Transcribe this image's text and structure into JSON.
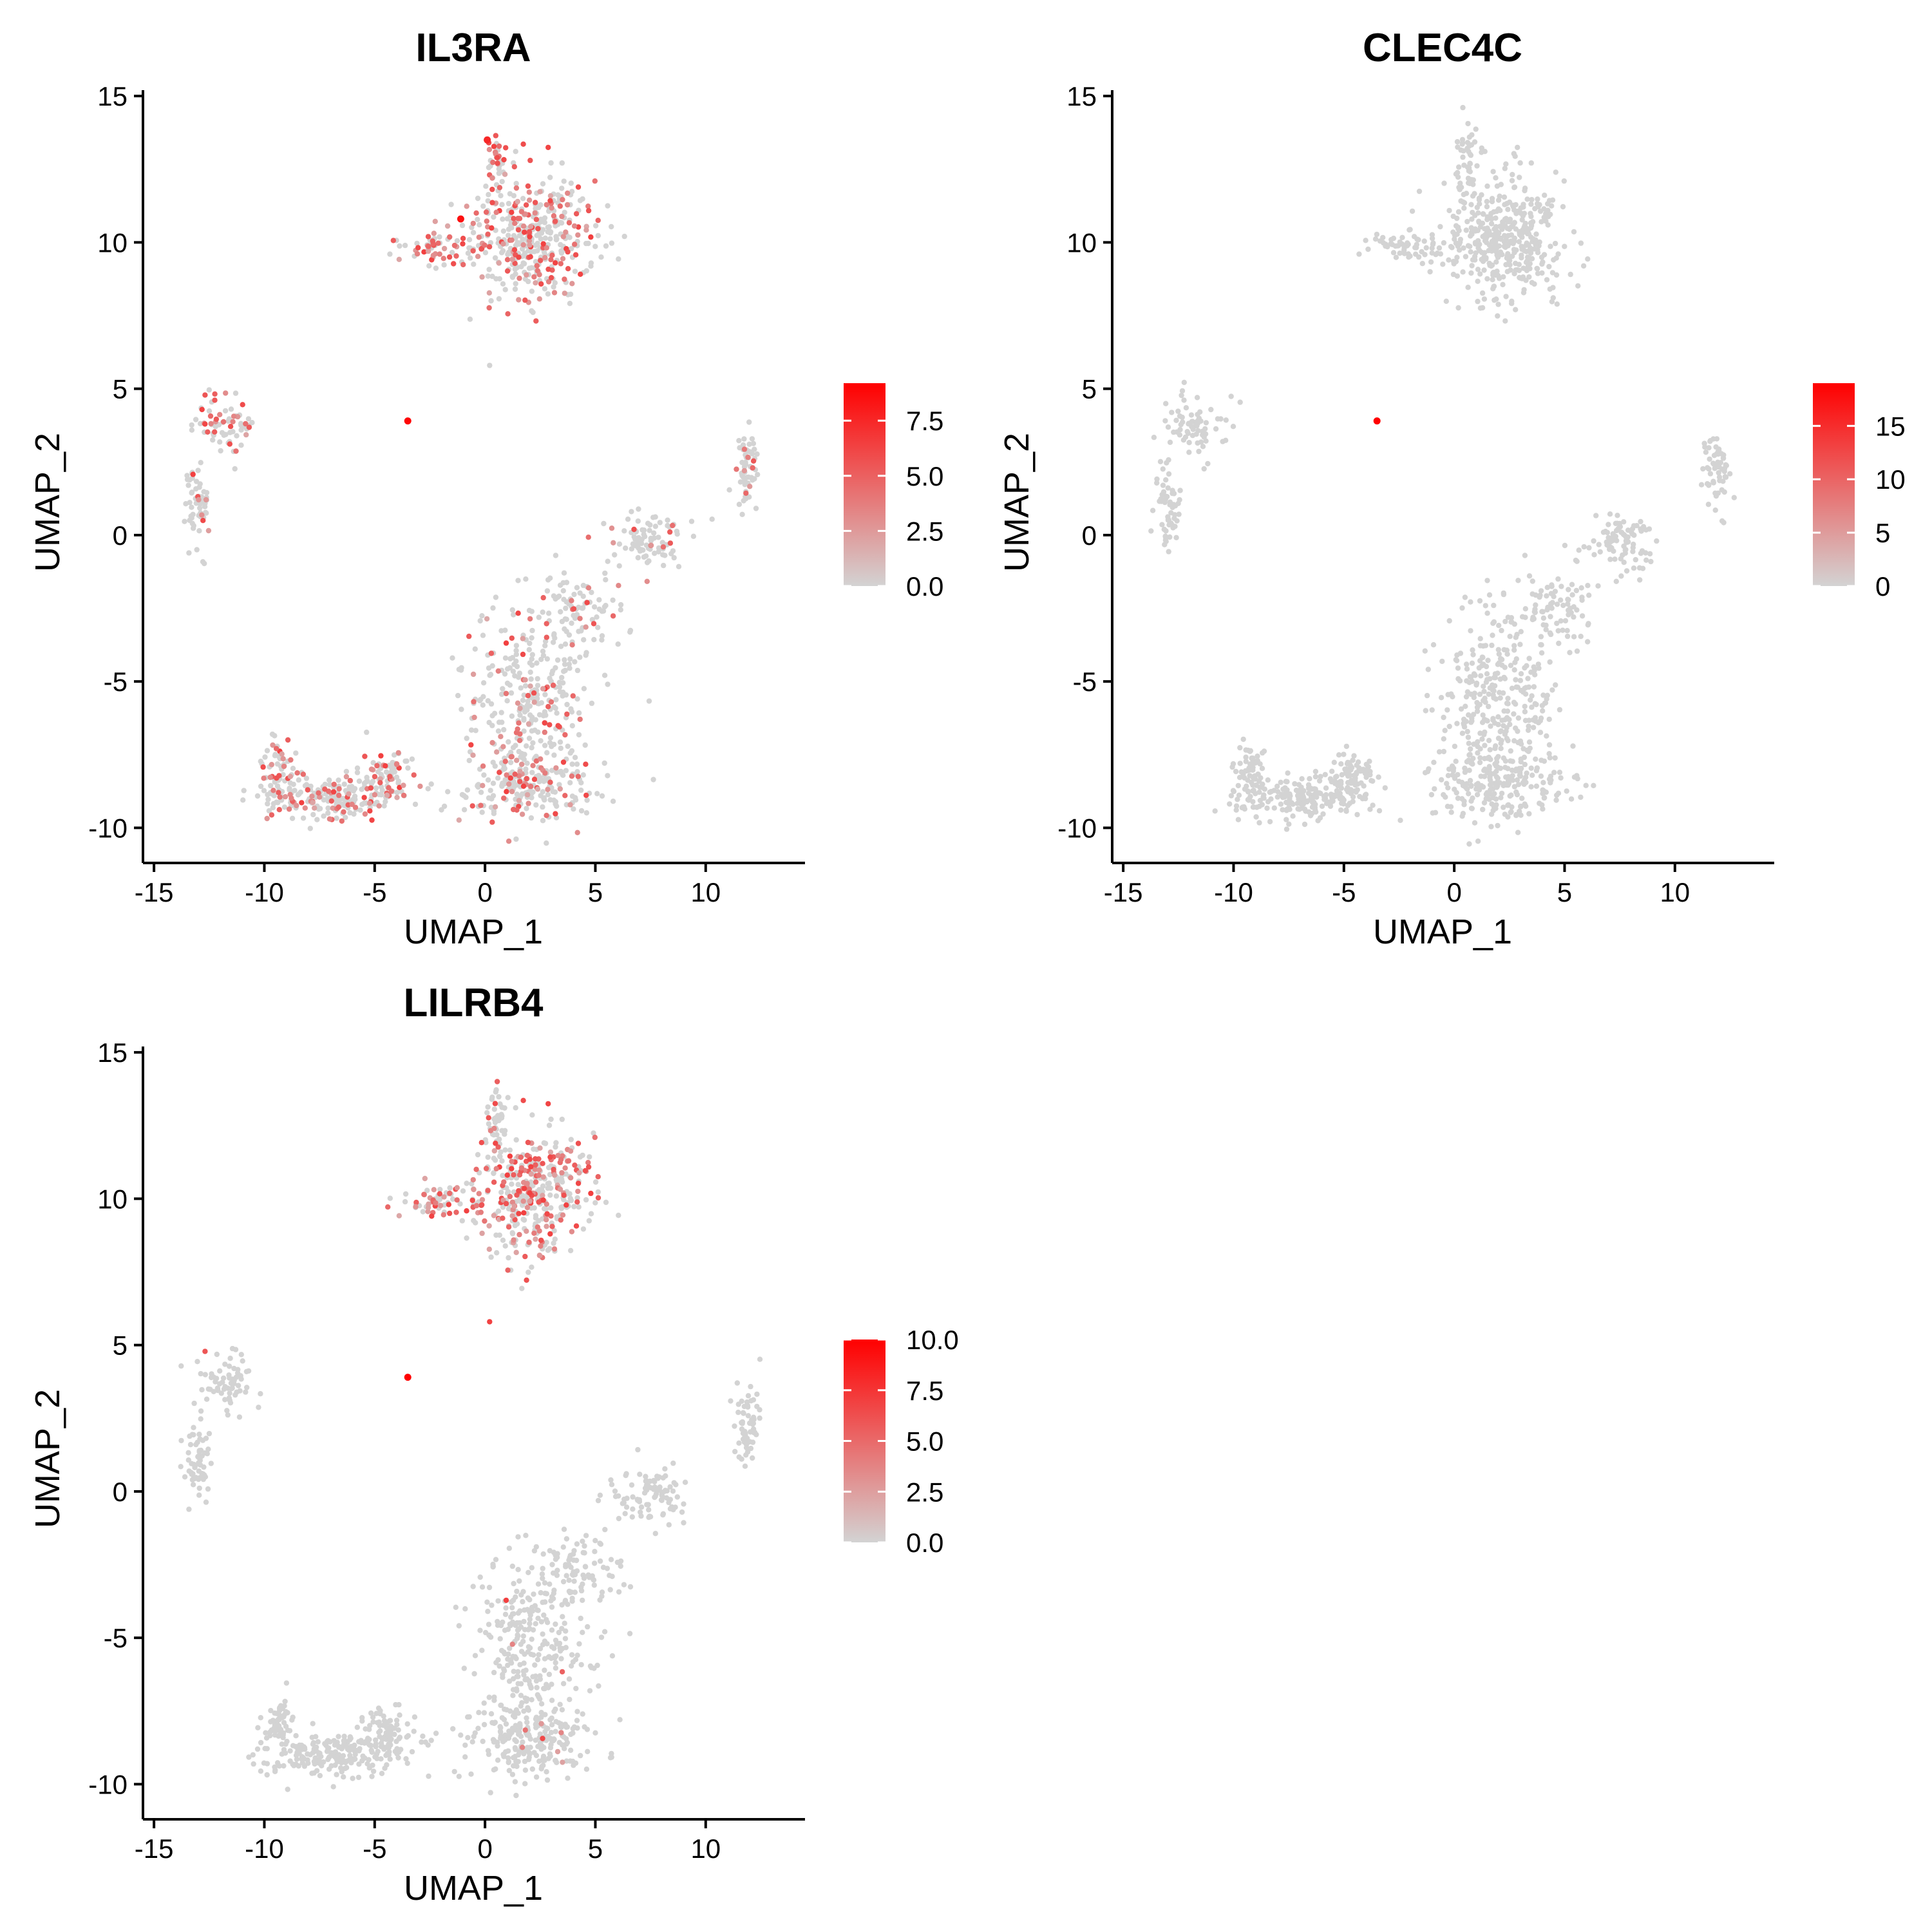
{
  "chart_data": [
    {
      "type": "scatter",
      "title": "IL3RA",
      "xlabel": "UMAP_1",
      "ylabel": "UMAP_2",
      "xlim": [
        -15.5,
        14.5
      ],
      "ylim": [
        -11.2,
        15.2
      ],
      "xticks": [
        -15,
        -10,
        -5,
        0,
        5,
        10
      ],
      "yticks": [
        -10,
        -5,
        0,
        5,
        10,
        15
      ],
      "color_low": "#d3d3d3",
      "color_high": "#ff0000",
      "grid": false,
      "legend": {
        "position": "right",
        "min": 0,
        "max": 9.2,
        "ticks": [
          {
            "value": 0,
            "label": "0.0"
          },
          {
            "value": 2.5,
            "label": "2.5"
          },
          {
            "value": 5,
            "label": "5.0"
          },
          {
            "value": 7.5,
            "label": "7.5"
          }
        ]
      },
      "clusters": [
        {
          "cx": 2.3,
          "cy": 10.2,
          "sx": 1.8,
          "sy": 1.4,
          "n": 420,
          "expr": 0.35
        },
        {
          "cx": 0.5,
          "cy": 12.8,
          "sx": 0.35,
          "sy": 0.8,
          "n": 40,
          "expr": 0.4
        },
        {
          "cx": -2.2,
          "cy": 9.9,
          "sx": 1.1,
          "sy": 0.35,
          "n": 60,
          "expr": 0.55
        },
        {
          "cx": -11.8,
          "cy": 3.7,
          "sx": 0.9,
          "sy": 0.7,
          "n": 70,
          "expr": 0.2
        },
        {
          "cx": -13.0,
          "cy": 1.0,
          "sx": 0.4,
          "sy": 1.0,
          "n": 60,
          "expr": 0.15
        },
        {
          "cx": 11.9,
          "cy": 2.2,
          "sx": 0.45,
          "sy": 0.9,
          "n": 60,
          "expr": 0.15
        },
        {
          "cx": 7.5,
          "cy": -0.2,
          "sx": 1.2,
          "sy": 0.7,
          "n": 90,
          "expr": 0.1
        },
        {
          "cx": 4.5,
          "cy": -2.5,
          "sx": 1.3,
          "sy": 0.8,
          "n": 80,
          "expr": 0.15
        },
        {
          "cx": 2.0,
          "cy": -5.5,
          "sx": 1.9,
          "sy": 2.0,
          "n": 300,
          "expr": 0.2
        },
        {
          "cx": 2.0,
          "cy": -8.5,
          "sx": 2.0,
          "sy": 0.9,
          "n": 220,
          "expr": 0.3
        },
        {
          "cx": -7.0,
          "cy": -9.0,
          "sx": 2.0,
          "sy": 0.5,
          "n": 200,
          "expr": 0.35
        },
        {
          "cx": -9.3,
          "cy": -8.0,
          "sx": 0.5,
          "sy": 0.7,
          "n": 60,
          "expr": 0.35
        },
        {
          "cx": -4.5,
          "cy": -8.2,
          "sx": 0.8,
          "sy": 0.6,
          "n": 80,
          "expr": 0.3
        }
      ],
      "highlights": [
        {
          "x": -3.5,
          "y": 3.9,
          "v": 9.0
        },
        {
          "x": -1.1,
          "y": 10.8,
          "v": 8.5
        },
        {
          "x": 0.1,
          "y": 13.5,
          "v": 7.5
        }
      ]
    },
    {
      "type": "scatter",
      "title": "CLEC4C",
      "xlabel": "UMAP_1",
      "ylabel": "UMAP_2",
      "xlim": [
        -15.5,
        14.5
      ],
      "ylim": [
        -11.2,
        15.2
      ],
      "xticks": [
        -15,
        -10,
        -5,
        0,
        5,
        10
      ],
      "yticks": [
        -10,
        -5,
        0,
        5,
        10,
        15
      ],
      "color_low": "#d3d3d3",
      "color_high": "#ff0000",
      "grid": false,
      "legend": {
        "position": "right",
        "min": 0,
        "max": 19,
        "ticks": [
          {
            "value": 0,
            "label": "0"
          },
          {
            "value": 5,
            "label": "5"
          },
          {
            "value": 10,
            "label": "10"
          },
          {
            "value": 15,
            "label": "15"
          }
        ]
      },
      "clusters": [
        {
          "cx": 2.3,
          "cy": 10.2,
          "sx": 1.8,
          "sy": 1.4,
          "n": 420,
          "expr": 0
        },
        {
          "cx": 0.5,
          "cy": 12.8,
          "sx": 0.35,
          "sy": 0.8,
          "n": 40,
          "expr": 0
        },
        {
          "cx": -2.2,
          "cy": 9.9,
          "sx": 1.1,
          "sy": 0.35,
          "n": 60,
          "expr": 0
        },
        {
          "cx": -11.8,
          "cy": 3.7,
          "sx": 0.9,
          "sy": 0.7,
          "n": 70,
          "expr": 0
        },
        {
          "cx": -13.0,
          "cy": 1.0,
          "sx": 0.4,
          "sy": 1.0,
          "n": 60,
          "expr": 0
        },
        {
          "cx": 11.9,
          "cy": 2.2,
          "sx": 0.45,
          "sy": 0.9,
          "n": 60,
          "expr": 0
        },
        {
          "cx": 7.5,
          "cy": -0.2,
          "sx": 1.2,
          "sy": 0.7,
          "n": 90,
          "expr": 0
        },
        {
          "cx": 4.5,
          "cy": -2.5,
          "sx": 1.3,
          "sy": 0.8,
          "n": 80,
          "expr": 0
        },
        {
          "cx": 2.0,
          "cy": -5.5,
          "sx": 1.9,
          "sy": 2.0,
          "n": 300,
          "expr": 0
        },
        {
          "cx": 2.0,
          "cy": -8.5,
          "sx": 2.0,
          "sy": 0.9,
          "n": 220,
          "expr": 0
        },
        {
          "cx": -7.0,
          "cy": -9.0,
          "sx": 2.0,
          "sy": 0.5,
          "n": 200,
          "expr": 0
        },
        {
          "cx": -9.3,
          "cy": -8.0,
          "sx": 0.5,
          "sy": 0.7,
          "n": 60,
          "expr": 0
        },
        {
          "cx": -4.5,
          "cy": -8.2,
          "sx": 0.8,
          "sy": 0.6,
          "n": 80,
          "expr": 0
        }
      ],
      "highlights": [
        {
          "x": -3.5,
          "y": 3.9,
          "v": 19
        }
      ]
    },
    {
      "type": "scatter",
      "title": "LILRB4",
      "xlabel": "UMAP_1",
      "ylabel": "UMAP_2",
      "xlim": [
        -15.5,
        14.5
      ],
      "ylim": [
        -11.2,
        15.2
      ],
      "xticks": [
        -15,
        -10,
        -5,
        0,
        5,
        10
      ],
      "yticks": [
        -10,
        -5,
        0,
        5,
        10,
        15
      ],
      "color_low": "#d3d3d3",
      "color_high": "#ff0000",
      "grid": false,
      "legend": {
        "position": "right",
        "min": 0,
        "max": 10,
        "ticks": [
          {
            "value": 0,
            "label": "0.0"
          },
          {
            "value": 2.5,
            "label": "2.5"
          },
          {
            "value": 5,
            "label": "5.0"
          },
          {
            "value": 7.5,
            "label": "7.5"
          },
          {
            "value": 10,
            "label": "10.0"
          }
        ]
      },
      "clusters": [
        {
          "cx": 2.3,
          "cy": 10.2,
          "sx": 1.8,
          "sy": 1.4,
          "n": 420,
          "expr": 0.4
        },
        {
          "cx": 0.5,
          "cy": 12.8,
          "sx": 0.35,
          "sy": 0.8,
          "n": 40,
          "expr": 0.2
        },
        {
          "cx": -2.2,
          "cy": 9.9,
          "sx": 1.1,
          "sy": 0.35,
          "n": 60,
          "expr": 0.4
        },
        {
          "cx": -11.8,
          "cy": 3.7,
          "sx": 0.9,
          "sy": 0.7,
          "n": 70,
          "expr": 0.02
        },
        {
          "cx": -13.0,
          "cy": 1.0,
          "sx": 0.4,
          "sy": 1.0,
          "n": 60,
          "expr": 0
        },
        {
          "cx": 11.9,
          "cy": 2.2,
          "sx": 0.45,
          "sy": 0.9,
          "n": 60,
          "expr": 0
        },
        {
          "cx": 7.5,
          "cy": -0.2,
          "sx": 1.2,
          "sy": 0.7,
          "n": 90,
          "expr": 0
        },
        {
          "cx": 4.5,
          "cy": -2.5,
          "sx": 1.3,
          "sy": 0.8,
          "n": 80,
          "expr": 0
        },
        {
          "cx": 2.0,
          "cy": -5.5,
          "sx": 1.9,
          "sy": 2.0,
          "n": 300,
          "expr": 0.02
        },
        {
          "cx": 2.0,
          "cy": -8.5,
          "sx": 2.0,
          "sy": 0.9,
          "n": 220,
          "expr": 0.02
        },
        {
          "cx": -7.0,
          "cy": -9.0,
          "sx": 2.0,
          "sy": 0.5,
          "n": 200,
          "expr": 0
        },
        {
          "cx": -9.3,
          "cy": -8.0,
          "sx": 0.5,
          "sy": 0.7,
          "n": 60,
          "expr": 0
        },
        {
          "cx": -4.5,
          "cy": -8.2,
          "sx": 0.8,
          "sy": 0.6,
          "n": 80,
          "expr": 0
        }
      ],
      "highlights": [
        {
          "x": -3.5,
          "y": 3.9,
          "v": 10
        }
      ]
    }
  ]
}
